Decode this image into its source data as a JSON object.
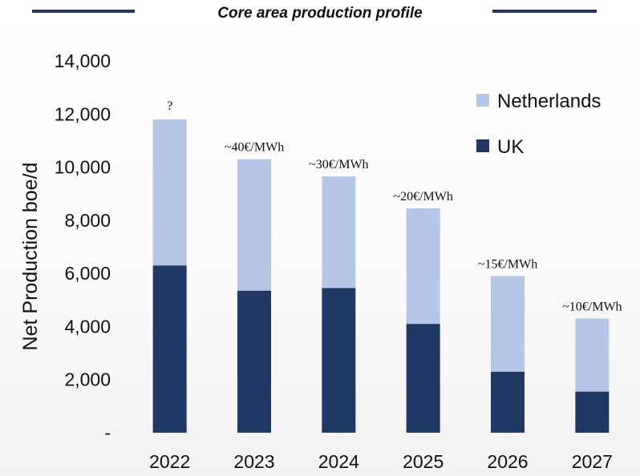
{
  "title": "Core area production profile",
  "colors": {
    "header_line": "#27375e",
    "uk": "#203864",
    "netherlands": "#b4c7e7"
  },
  "chart_data": {
    "type": "bar",
    "stacked": true,
    "title": "Core area production profile",
    "xlabel": "",
    "ylabel": "Net Production boe/d",
    "ylim": [
      0,
      14000
    ],
    "y_ticks": [
      0,
      2000,
      4000,
      6000,
      8000,
      10000,
      12000,
      14000
    ],
    "y_tick_labels": [
      "-",
      "2,000",
      "4,000",
      "6,000",
      "8,000",
      "10,000",
      "12,000",
      "14,000"
    ],
    "categories": [
      "2022",
      "2023",
      "2024",
      "2025",
      "2026",
      "2027"
    ],
    "series": [
      {
        "name": "UK",
        "values": [
          6300,
          5350,
          5450,
          4100,
          2300,
          1550
        ]
      },
      {
        "name": "Netherlands",
        "values": [
          5500,
          4950,
          4200,
          4350,
          3600,
          2750
        ]
      }
    ],
    "annotations": [
      "?",
      "~40€/MWh",
      "~30€/MWh",
      "~20€/MWh",
      "~15€/MWh",
      "~10€/MWh"
    ],
    "legend": [
      "Netherlands",
      "UK"
    ],
    "legend_position": "top-right",
    "grid": false
  }
}
